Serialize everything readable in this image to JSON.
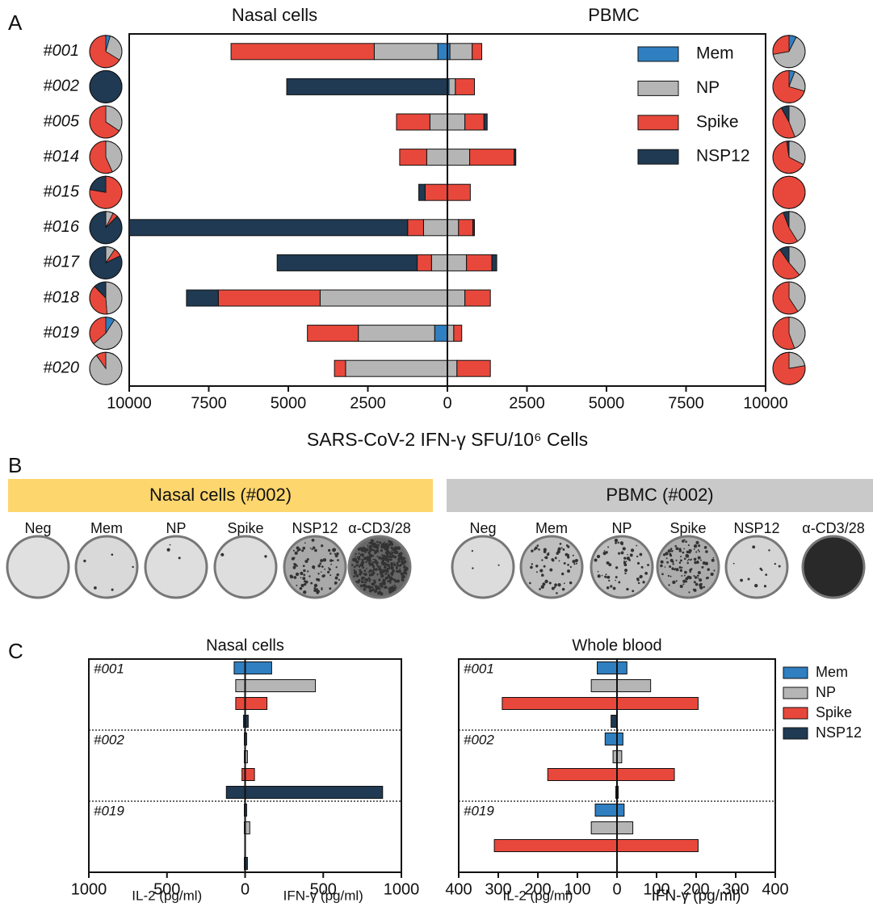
{
  "panel_labels": [
    "A",
    "B",
    "C"
  ],
  "chart_data": [
    {
      "type": "stacked-butterfly-bar",
      "left_title": "Nasal cells",
      "right_title": "PBMC",
      "x_label": "SARS-CoV-2 IFN-γ SFU/10⁶ Cells",
      "categories": [
        "#001",
        "#002",
        "#005",
        "#014",
        "#015",
        "#016",
        "#017",
        "#018",
        "#019",
        "#020"
      ],
      "series": [
        {
          "name": "Mem",
          "color": "#2f7fc1",
          "left_values": [
            300,
            0,
            0,
            0,
            0,
            0,
            0,
            0,
            400,
            0
          ],
          "right_values": [
            80,
            50,
            0,
            0,
            0,
            0,
            0,
            0,
            0,
            0
          ]
        },
        {
          "name": "NP",
          "color": "#b5b5b5",
          "left_values": [
            2000,
            0,
            550,
            650,
            0,
            750,
            500,
            4000,
            2400,
            3200
          ],
          "right_values": [
            700,
            200,
            550,
            700,
            0,
            350,
            600,
            550,
            200,
            300
          ]
        },
        {
          "name": "Spike",
          "color": "#e8483b",
          "left_values": [
            4500,
            0,
            1050,
            850,
            700,
            500,
            450,
            3200,
            1600,
            350
          ],
          "right_values": [
            300,
            600,
            600,
            1400,
            720,
            450,
            800,
            800,
            250,
            1050
          ]
        },
        {
          "name": "NSP12",
          "color": "#1f3a52",
          "left_values": [
            0,
            5050,
            0,
            0,
            200,
            8750,
            4400,
            1000,
            0,
            0
          ],
          "right_values": [
            0,
            0,
            100,
            50,
            0,
            50,
            150,
            0,
            0,
            0
          ]
        }
      ],
      "xlim": [
        -10000,
        10000
      ],
      "xticks": [
        {
          "value": -10000,
          "label": "10000"
        },
        {
          "value": -7500,
          "label": "7500"
        },
        {
          "value": -5000,
          "label": "5000"
        },
        {
          "value": -2500,
          "label": "2500"
        },
        0,
        2500,
        5000,
        7500,
        10000
      ],
      "legend": "upper right"
    },
    {
      "type": "butterfly-bar",
      "title": "Nasal cells",
      "left_label": "IL-2 (pg/ml)",
      "right_label": "IFN-γ (pg/ml)",
      "groups": [
        "#001",
        "#002",
        "#019"
      ],
      "series": [
        {
          "color": "#2f7fc1",
          "left_values": [
            70,
            5,
            5
          ],
          "right_values": [
            170,
            10,
            10
          ]
        },
        {
          "color": "#b5b5b5",
          "left_values": [
            60,
            5,
            5
          ],
          "right_values": [
            450,
            15,
            30
          ]
        },
        {
          "color": "#e8483b",
          "left_values": [
            60,
            20,
            0
          ],
          "right_values": [
            140,
            60,
            0
          ]
        },
        {
          "color": "#1f3a52",
          "left_values": [
            10,
            120,
            5
          ],
          "right_values": [
            20,
            880,
            15
          ]
        }
      ],
      "xlim": [
        -1000,
        1000
      ],
      "xticks": [
        {
          "value": -1000,
          "label": "1000"
        },
        {
          "value": -500,
          "label": "500"
        },
        0,
        500,
        1000
      ]
    },
    {
      "type": "butterfly-bar",
      "title": "Whole blood",
      "left_label": "IL-2 (pg/ml)",
      "right_label": "IFN-γ (pg/ml)",
      "groups": [
        "#001",
        "#002",
        "#019"
      ],
      "series": [
        {
          "name": "Mem",
          "color": "#2f7fc1",
          "left_values": [
            50,
            30,
            55
          ],
          "right_values": [
            25,
            15,
            18
          ]
        },
        {
          "name": "NP",
          "color": "#b5b5b5",
          "left_values": [
            65,
            10,
            65
          ],
          "right_values": [
            85,
            12,
            40
          ]
        },
        {
          "name": "Spike",
          "color": "#e8483b",
          "left_values": [
            290,
            175,
            310
          ],
          "right_values": [
            205,
            145,
            205
          ]
        },
        {
          "name": "NSP12",
          "color": "#1f3a52",
          "left_values": [
            15,
            3,
            0
          ],
          "right_values": [
            0,
            3,
            0
          ]
        }
      ],
      "xlim": [
        -400,
        400
      ],
      "xticks": [
        {
          "value": -400,
          "label": "400"
        },
        {
          "value": -300,
          "label": "300"
        },
        {
          "value": -200,
          "label": "200"
        },
        {
          "value": -100,
          "label": "100"
        },
        0,
        100,
        200,
        300,
        400
      ],
      "legend": "right outside"
    }
  ],
  "panel_b": {
    "left_title": "Nasal cells (#002)",
    "right_title": "PBMC (#002)",
    "wells": [
      "Neg",
      "Mem",
      "NP",
      "Spike",
      "NSP12",
      "α-CD3/28"
    ]
  }
}
